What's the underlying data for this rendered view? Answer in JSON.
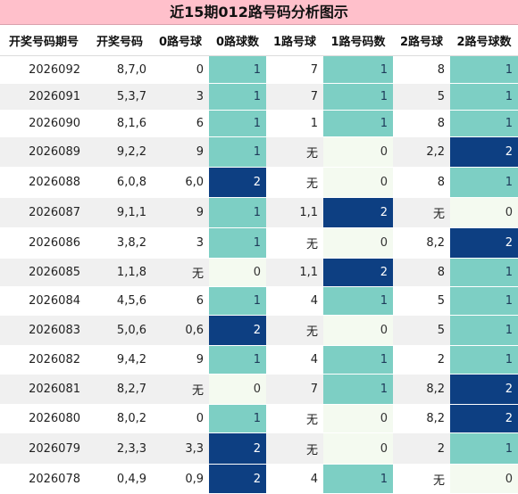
{
  "title": "近15期012路号码分析图示",
  "headers": [
    "开奖号码期号",
    "开奖号码",
    "0路号球",
    "0路球数",
    "1路号球",
    "1路号码数",
    "2路号球",
    "2路号球数"
  ],
  "rows": [
    [
      "2026092",
      "8,7,0",
      "0",
      "1",
      "7",
      "1",
      "8",
      "1"
    ],
    [
      "2026091",
      "5,3,7",
      "3",
      "1",
      "7",
      "1",
      "5",
      "1"
    ],
    [
      "2026090",
      "8,1,6",
      "6",
      "1",
      "1",
      "1",
      "8",
      "1"
    ],
    [
      "2026089",
      "9,2,2",
      "9",
      "1",
      "无",
      "0",
      "2,2",
      "2"
    ],
    [
      "2026088",
      "6,0,8",
      "6,0",
      "2",
      "无",
      "0",
      "8",
      "1"
    ],
    [
      "2026087",
      "9,1,1",
      "9",
      "1",
      "1,1",
      "2",
      "无",
      "0"
    ],
    [
      "2026086",
      "3,8,2",
      "3",
      "1",
      "无",
      "0",
      "8,2",
      "2"
    ],
    [
      "2026085",
      "1,1,8",
      "无",
      "0",
      "1,1",
      "2",
      "8",
      "1"
    ],
    [
      "2026084",
      "4,5,6",
      "6",
      "1",
      "4",
      "1",
      "5",
      "1"
    ],
    [
      "2026083",
      "5,0,6",
      "0,6",
      "2",
      "无",
      "0",
      "5",
      "1"
    ],
    [
      "2026082",
      "9,4,2",
      "9",
      "1",
      "4",
      "1",
      "2",
      "1"
    ],
    [
      "2026081",
      "8,2,7",
      "无",
      "0",
      "7",
      "1",
      "8,2",
      "2"
    ],
    [
      "2026080",
      "8,0,2",
      "0",
      "1",
      "无",
      "0",
      "8,2",
      "2"
    ],
    [
      "2026079",
      "2,3,3",
      "3,3",
      "2",
      "无",
      "0",
      "2",
      "1"
    ],
    [
      "2026078",
      "0,4,9",
      "0,9",
      "2",
      "4",
      "1",
      "无",
      "0"
    ]
  ],
  "colors": {
    "title_bg": "#ffc0cb",
    "count_0": "#f4faf0",
    "count_1": "#7dcfc4",
    "count_2": "#0d3f82"
  }
}
